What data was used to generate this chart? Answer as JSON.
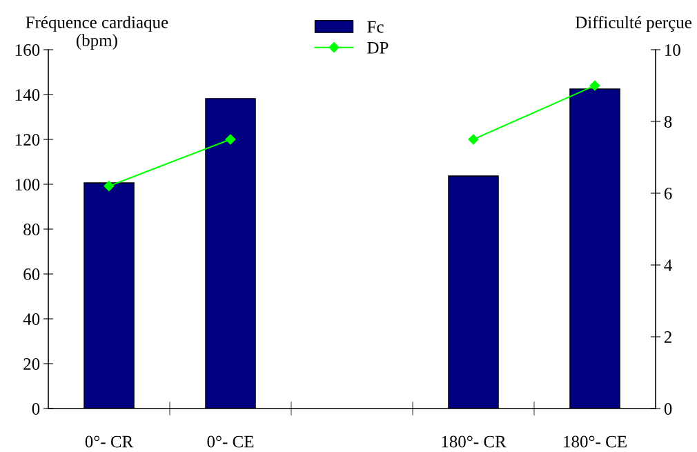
{
  "chart_data": {
    "type": "bar",
    "ylabel": "Fréquence cardiaque\n(bpm)",
    "y2label": "Difficulté perçue",
    "categories": [
      "0°- CR",
      "0°- CE",
      null,
      "180°- CR",
      "180°- CE"
    ],
    "series": [
      {
        "name": "Fc",
        "color": "#000080",
        "values": [
          100.6,
          138.2,
          null,
          103.7,
          142.5
        ]
      },
      {
        "name": "DP",
        "type": "line",
        "axis": "y2",
        "color": "#00ff00",
        "marker": "diamond",
        "values": [
          6.2,
          7.5,
          null,
          7.5,
          9.0
        ]
      }
    ],
    "ylim": [
      0,
      160
    ],
    "yticks": [
      0,
      20,
      40,
      60,
      80,
      100,
      120,
      140,
      160
    ],
    "y2lim": [
      0,
      10
    ],
    "y2ticks": [
      0,
      2,
      4,
      6,
      8,
      10
    ],
    "grid": false,
    "legend": "top"
  }
}
